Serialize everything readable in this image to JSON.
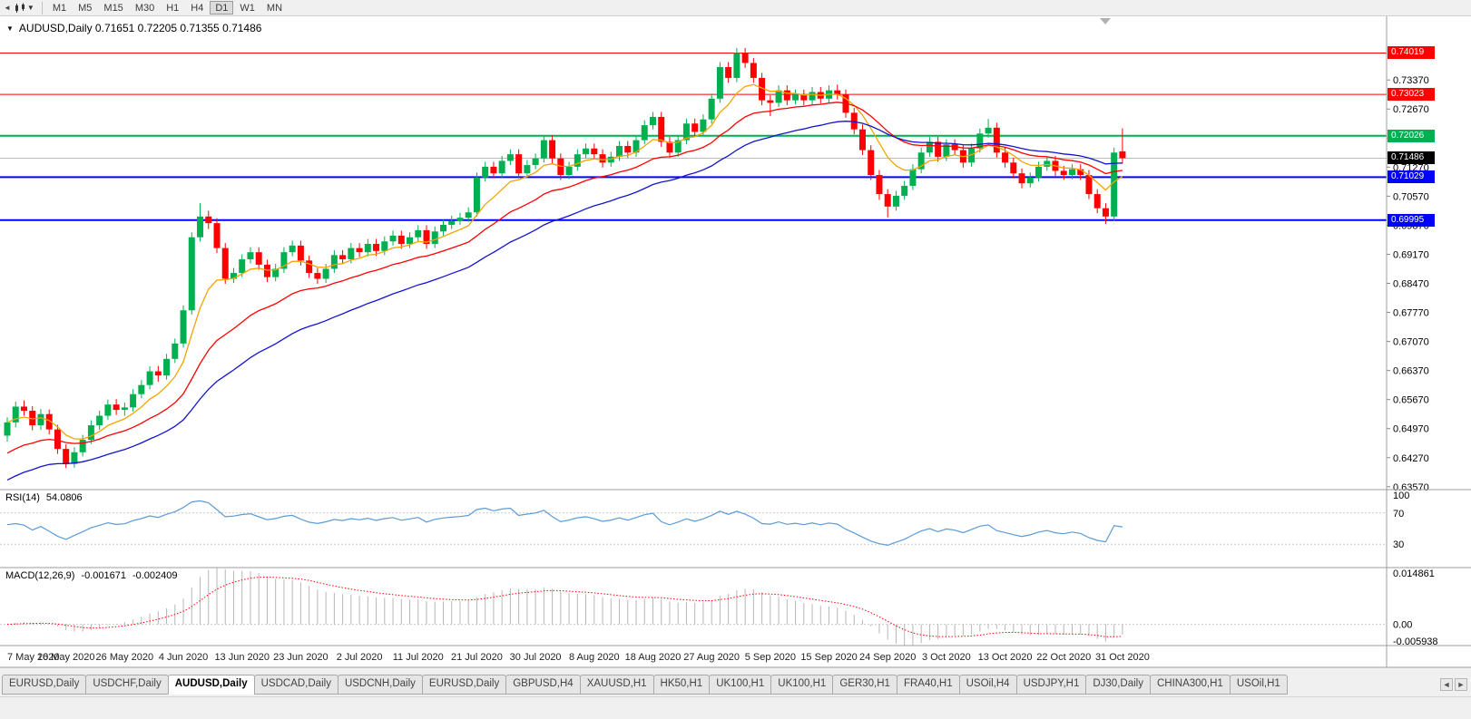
{
  "toolbar": {
    "timeframes": [
      "M1",
      "M5",
      "M15",
      "M30",
      "H1",
      "H4",
      "D1",
      "W1",
      "MN"
    ],
    "active_timeframe": "D1"
  },
  "chart": {
    "symbol": "AUDUSD",
    "period": "Daily",
    "title": "AUDUSD,Daily 0.71651 0.72205 0.71355 0.71486"
  },
  "colors": {
    "up": "#00b050",
    "down": "#ff0000",
    "background": "#ffffff",
    "toolbar_bg": "#f0f0f0",
    "rsi_line": "#5b9bd5",
    "macd_hist": "#b6b6b6",
    "macd_signal": "#ff0000",
    "current_price_badge": "#000000"
  },
  "levels": [
    {
      "price": 0.74019,
      "label": "0.74019",
      "color": "#ff0000",
      "width": 1
    },
    {
      "price": 0.73023,
      "label": "0.73023",
      "color": "#ff0000",
      "width": 1
    },
    {
      "price": 0.72026,
      "label": "0.72026",
      "color": "#00b050",
      "width": 2
    },
    {
      "price": 0.71029,
      "label": "0.71029",
      "color": "#0000ff",
      "width": 2
    },
    {
      "price": 0.69995,
      "label": "0.69995",
      "color": "#0000ff",
      "width": 2
    }
  ],
  "current_price": {
    "value": 0.71486,
    "label": "0.71486"
  },
  "price_axis": {
    "first": 0.6357,
    "step": 0.007,
    "count": 15,
    "decimals": 5
  },
  "moving_averages": [
    {
      "period": 8,
      "color": "#f2a400",
      "seed": null
    },
    {
      "period": 20,
      "color": "#ff0000",
      "seed": 0.643
    },
    {
      "period": 35,
      "color": "#1414cc",
      "seed": 0.6365
    }
  ],
  "indicators": {
    "rsi": {
      "label": "RSI(14)",
      "value": "54.0806",
      "period": 14,
      "levels": [
        100,
        70,
        30
      ],
      "color": "#5b9bd5"
    },
    "macd": {
      "label": "MACD(12,26,9)",
      "value1": "-0.001671",
      "value2": "-0.002409",
      "periods": [
        12,
        26,
        9
      ],
      "axis": [
        "0.014861",
        "0.00",
        "-0.005938"
      ],
      "range": [
        -0.005938,
        0.014861
      ]
    }
  },
  "chart_data": {
    "type": "candlestick",
    "symbol": "AUDUSD",
    "timeframe": "Daily",
    "ylim": [
      0.635,
      0.7486
    ],
    "label_every": 7,
    "x_labels": [
      "7 May 2020",
      "16 May 2020",
      "26 May 2020",
      "4 Jun 2020",
      "13 Jun 2020",
      "23 Jun 2020",
      "2 Jul 2020",
      "11 Jul 2020",
      "21 Jul 2020",
      "30 Jul 2020",
      "8 Aug 2020",
      "18 Aug 2020",
      "27 Aug 2020",
      "5 Sep 2020",
      "15 Sep 2020",
      "24 Sep 2020",
      "3 Oct 2020",
      "13 Oct 2020",
      "22 Oct 2020",
      "31 Oct 2020"
    ],
    "candles": [
      [
        0.648,
        0.6524,
        0.6466,
        0.6512
      ],
      [
        0.6512,
        0.6562,
        0.65,
        0.655
      ],
      [
        0.655,
        0.6565,
        0.6528,
        0.654
      ],
      [
        0.654,
        0.6551,
        0.6493,
        0.6505
      ],
      [
        0.6505,
        0.6544,
        0.6494,
        0.6532
      ],
      [
        0.6532,
        0.6543,
        0.6483,
        0.6495
      ],
      [
        0.6495,
        0.6506,
        0.6436,
        0.6448
      ],
      [
        0.6448,
        0.6459,
        0.6402,
        0.6412
      ],
      [
        0.6412,
        0.6452,
        0.6403,
        0.644
      ],
      [
        0.644,
        0.6482,
        0.643,
        0.647
      ],
      [
        0.647,
        0.6517,
        0.646,
        0.6505
      ],
      [
        0.6505,
        0.654,
        0.6494,
        0.6528
      ],
      [
        0.6528,
        0.6567,
        0.6518,
        0.6555
      ],
      [
        0.6555,
        0.6568,
        0.653,
        0.6542
      ],
      [
        0.6542,
        0.656,
        0.6528,
        0.6548
      ],
      [
        0.6548,
        0.6592,
        0.6538,
        0.658
      ],
      [
        0.658,
        0.6614,
        0.657,
        0.6602
      ],
      [
        0.6602,
        0.6647,
        0.6592,
        0.6635
      ],
      [
        0.6635,
        0.6648,
        0.661,
        0.6625
      ],
      [
        0.6625,
        0.6677,
        0.6615,
        0.6665
      ],
      [
        0.6665,
        0.6714,
        0.6655,
        0.6702
      ],
      [
        0.6702,
        0.6794,
        0.6692,
        0.6782
      ],
      [
        0.6782,
        0.697,
        0.6772,
        0.6958
      ],
      [
        0.6958,
        0.704,
        0.6948,
        0.7008
      ],
      [
        0.7008,
        0.7022,
        0.6978,
        0.6992
      ],
      [
        0.6992,
        0.7004,
        0.692,
        0.6932
      ],
      [
        0.6932,
        0.6944,
        0.6846,
        0.6858
      ],
      [
        0.6858,
        0.6884,
        0.6848,
        0.6872
      ],
      [
        0.6872,
        0.6917,
        0.6862,
        0.6905
      ],
      [
        0.6905,
        0.6934,
        0.6895,
        0.6922
      ],
      [
        0.6922,
        0.6934,
        0.688,
        0.6892
      ],
      [
        0.6892,
        0.6904,
        0.685,
        0.6862
      ],
      [
        0.6862,
        0.6894,
        0.6852,
        0.6882
      ],
      [
        0.6882,
        0.6934,
        0.6872,
        0.6922
      ],
      [
        0.6922,
        0.695,
        0.6912,
        0.6938
      ],
      [
        0.6938,
        0.695,
        0.689,
        0.6902
      ],
      [
        0.6902,
        0.6914,
        0.686,
        0.6872
      ],
      [
        0.6872,
        0.6884,
        0.6846,
        0.6858
      ],
      [
        0.6858,
        0.6894,
        0.6848,
        0.6882
      ],
      [
        0.6882,
        0.6927,
        0.6872,
        0.6915
      ],
      [
        0.6915,
        0.6927,
        0.6893,
        0.6905
      ],
      [
        0.6905,
        0.6944,
        0.6895,
        0.6932
      ],
      [
        0.6932,
        0.6944,
        0.691,
        0.6922
      ],
      [
        0.6922,
        0.6954,
        0.6912,
        0.6942
      ],
      [
        0.6942,
        0.6954,
        0.6913,
        0.6925
      ],
      [
        0.6925,
        0.696,
        0.6915,
        0.6948
      ],
      [
        0.6948,
        0.6974,
        0.6938,
        0.6962
      ],
      [
        0.6962,
        0.6974,
        0.693,
        0.6942
      ],
      [
        0.6942,
        0.697,
        0.6932,
        0.6958
      ],
      [
        0.6958,
        0.6987,
        0.6948,
        0.6975
      ],
      [
        0.6975,
        0.6987,
        0.693,
        0.6942
      ],
      [
        0.6942,
        0.6984,
        0.6932,
        0.6972
      ],
      [
        0.6972,
        0.7,
        0.6962,
        0.6988
      ],
      [
        0.6988,
        0.701,
        0.6978,
        0.6998
      ],
      [
        0.6998,
        0.7017,
        0.6988,
        0.7005
      ],
      [
        0.7005,
        0.703,
        0.6995,
        0.7018
      ],
      [
        0.7018,
        0.7114,
        0.7008,
        0.7102
      ],
      [
        0.7102,
        0.714,
        0.7092,
        0.7128
      ],
      [
        0.7128,
        0.714,
        0.71,
        0.7112
      ],
      [
        0.7112,
        0.7154,
        0.7102,
        0.7142
      ],
      [
        0.7142,
        0.717,
        0.7132,
        0.7158
      ],
      [
        0.7158,
        0.717,
        0.71,
        0.7112
      ],
      [
        0.7112,
        0.7144,
        0.7102,
        0.7132
      ],
      [
        0.7132,
        0.716,
        0.7122,
        0.7148
      ],
      [
        0.7148,
        0.7204,
        0.7138,
        0.7192
      ],
      [
        0.7192,
        0.7204,
        0.7136,
        0.7148
      ],
      [
        0.7148,
        0.716,
        0.7096,
        0.7108
      ],
      [
        0.7108,
        0.714,
        0.7098,
        0.7128
      ],
      [
        0.7128,
        0.717,
        0.7118,
        0.7158
      ],
      [
        0.7158,
        0.7184,
        0.7148,
        0.7172
      ],
      [
        0.7172,
        0.7184,
        0.7146,
        0.7158
      ],
      [
        0.7158,
        0.717,
        0.7126,
        0.7138
      ],
      [
        0.7138,
        0.7164,
        0.7128,
        0.7152
      ],
      [
        0.7152,
        0.719,
        0.7142,
        0.7178
      ],
      [
        0.7178,
        0.719,
        0.715,
        0.7162
      ],
      [
        0.7162,
        0.7204,
        0.7152,
        0.7192
      ],
      [
        0.7192,
        0.724,
        0.7182,
        0.7228
      ],
      [
        0.7228,
        0.726,
        0.7218,
        0.7248
      ],
      [
        0.7248,
        0.726,
        0.7176,
        0.7188
      ],
      [
        0.7188,
        0.72,
        0.715,
        0.7162
      ],
      [
        0.7162,
        0.7204,
        0.7152,
        0.7192
      ],
      [
        0.7192,
        0.7244,
        0.7182,
        0.7232
      ],
      [
        0.7232,
        0.7244,
        0.72,
        0.7212
      ],
      [
        0.7212,
        0.7254,
        0.7202,
        0.7242
      ],
      [
        0.7242,
        0.7304,
        0.7232,
        0.7292
      ],
      [
        0.7292,
        0.738,
        0.7282,
        0.7368
      ],
      [
        0.7368,
        0.738,
        0.733,
        0.7342
      ],
      [
        0.7342,
        0.7414,
        0.7332,
        0.7402
      ],
      [
        0.7402,
        0.7414,
        0.7366,
        0.7378
      ],
      [
        0.7378,
        0.739,
        0.733,
        0.7342
      ],
      [
        0.7342,
        0.7354,
        0.7276,
        0.7288
      ],
      [
        0.7288,
        0.73,
        0.725,
        0.7282
      ],
      [
        0.7282,
        0.7324,
        0.7272,
        0.7312
      ],
      [
        0.7312,
        0.7324,
        0.7276,
        0.7288
      ],
      [
        0.7288,
        0.7314,
        0.7278,
        0.7302
      ],
      [
        0.7302,
        0.7314,
        0.7276,
        0.7288
      ],
      [
        0.7288,
        0.732,
        0.7278,
        0.7308
      ],
      [
        0.7308,
        0.732,
        0.728,
        0.7292
      ],
      [
        0.7292,
        0.7324,
        0.7282,
        0.7312
      ],
      [
        0.7312,
        0.7326,
        0.729,
        0.7302
      ],
      [
        0.7302,
        0.7314,
        0.7246,
        0.7258
      ],
      [
        0.7258,
        0.727,
        0.7206,
        0.7218
      ],
      [
        0.7218,
        0.723,
        0.7156,
        0.7168
      ],
      [
        0.7168,
        0.718,
        0.7096,
        0.7108
      ],
      [
        0.7108,
        0.712,
        0.7048,
        0.7062
      ],
      [
        0.7062,
        0.7074,
        0.7006,
        0.7032
      ],
      [
        0.7032,
        0.707,
        0.7022,
        0.7058
      ],
      [
        0.7058,
        0.7094,
        0.7048,
        0.7082
      ],
      [
        0.7082,
        0.7134,
        0.7072,
        0.7122
      ],
      [
        0.7122,
        0.7174,
        0.7112,
        0.7162
      ],
      [
        0.7162,
        0.72,
        0.7152,
        0.7188
      ],
      [
        0.7188,
        0.72,
        0.714,
        0.7152
      ],
      [
        0.7152,
        0.7194,
        0.7142,
        0.7182
      ],
      [
        0.7182,
        0.7194,
        0.7156,
        0.7168
      ],
      [
        0.7168,
        0.718,
        0.7126,
        0.7138
      ],
      [
        0.7138,
        0.7184,
        0.7128,
        0.7172
      ],
      [
        0.7172,
        0.722,
        0.7162,
        0.7208
      ],
      [
        0.7208,
        0.7243,
        0.7198,
        0.7222
      ],
      [
        0.7222,
        0.7234,
        0.715,
        0.7162
      ],
      [
        0.7162,
        0.7174,
        0.7126,
        0.7138
      ],
      [
        0.7138,
        0.715,
        0.71,
        0.7112
      ],
      [
        0.7112,
        0.7124,
        0.7076,
        0.7088
      ],
      [
        0.7088,
        0.7114,
        0.7078,
        0.7102
      ],
      [
        0.7102,
        0.714,
        0.7092,
        0.7128
      ],
      [
        0.7128,
        0.7154,
        0.7118,
        0.7142
      ],
      [
        0.7142,
        0.7154,
        0.7106,
        0.7118
      ],
      [
        0.7118,
        0.713,
        0.7096,
        0.7108
      ],
      [
        0.7108,
        0.7134,
        0.7098,
        0.7122
      ],
      [
        0.7122,
        0.7134,
        0.7096,
        0.7108
      ],
      [
        0.7108,
        0.712,
        0.705,
        0.7062
      ],
      [
        0.7062,
        0.7074,
        0.7016,
        0.7028
      ],
      [
        0.7028,
        0.704,
        0.699,
        0.7008
      ],
      [
        0.7008,
        0.7174,
        0.6998,
        0.7162
      ],
      [
        0.71651,
        0.72205,
        0.71355,
        0.71486
      ]
    ]
  },
  "tabs": {
    "items": [
      "EURUSD,Daily",
      "USDCHF,Daily",
      "AUDUSD,Daily",
      "USDCAD,Daily",
      "USDCNH,Daily",
      "EURUSD,Daily",
      "GBPUSD,H4",
      "XAUUSD,H1",
      "HK50,H1",
      "UK100,H1",
      "UK100,H1",
      "GER30,H1",
      "FRA40,H1",
      "USOil,H4",
      "USDJPY,H1",
      "DJ30,Daily",
      "CHINA300,H1",
      "USOil,H1"
    ],
    "active_index": 2,
    "scroll_left": "◄",
    "scroll_right": "►"
  }
}
